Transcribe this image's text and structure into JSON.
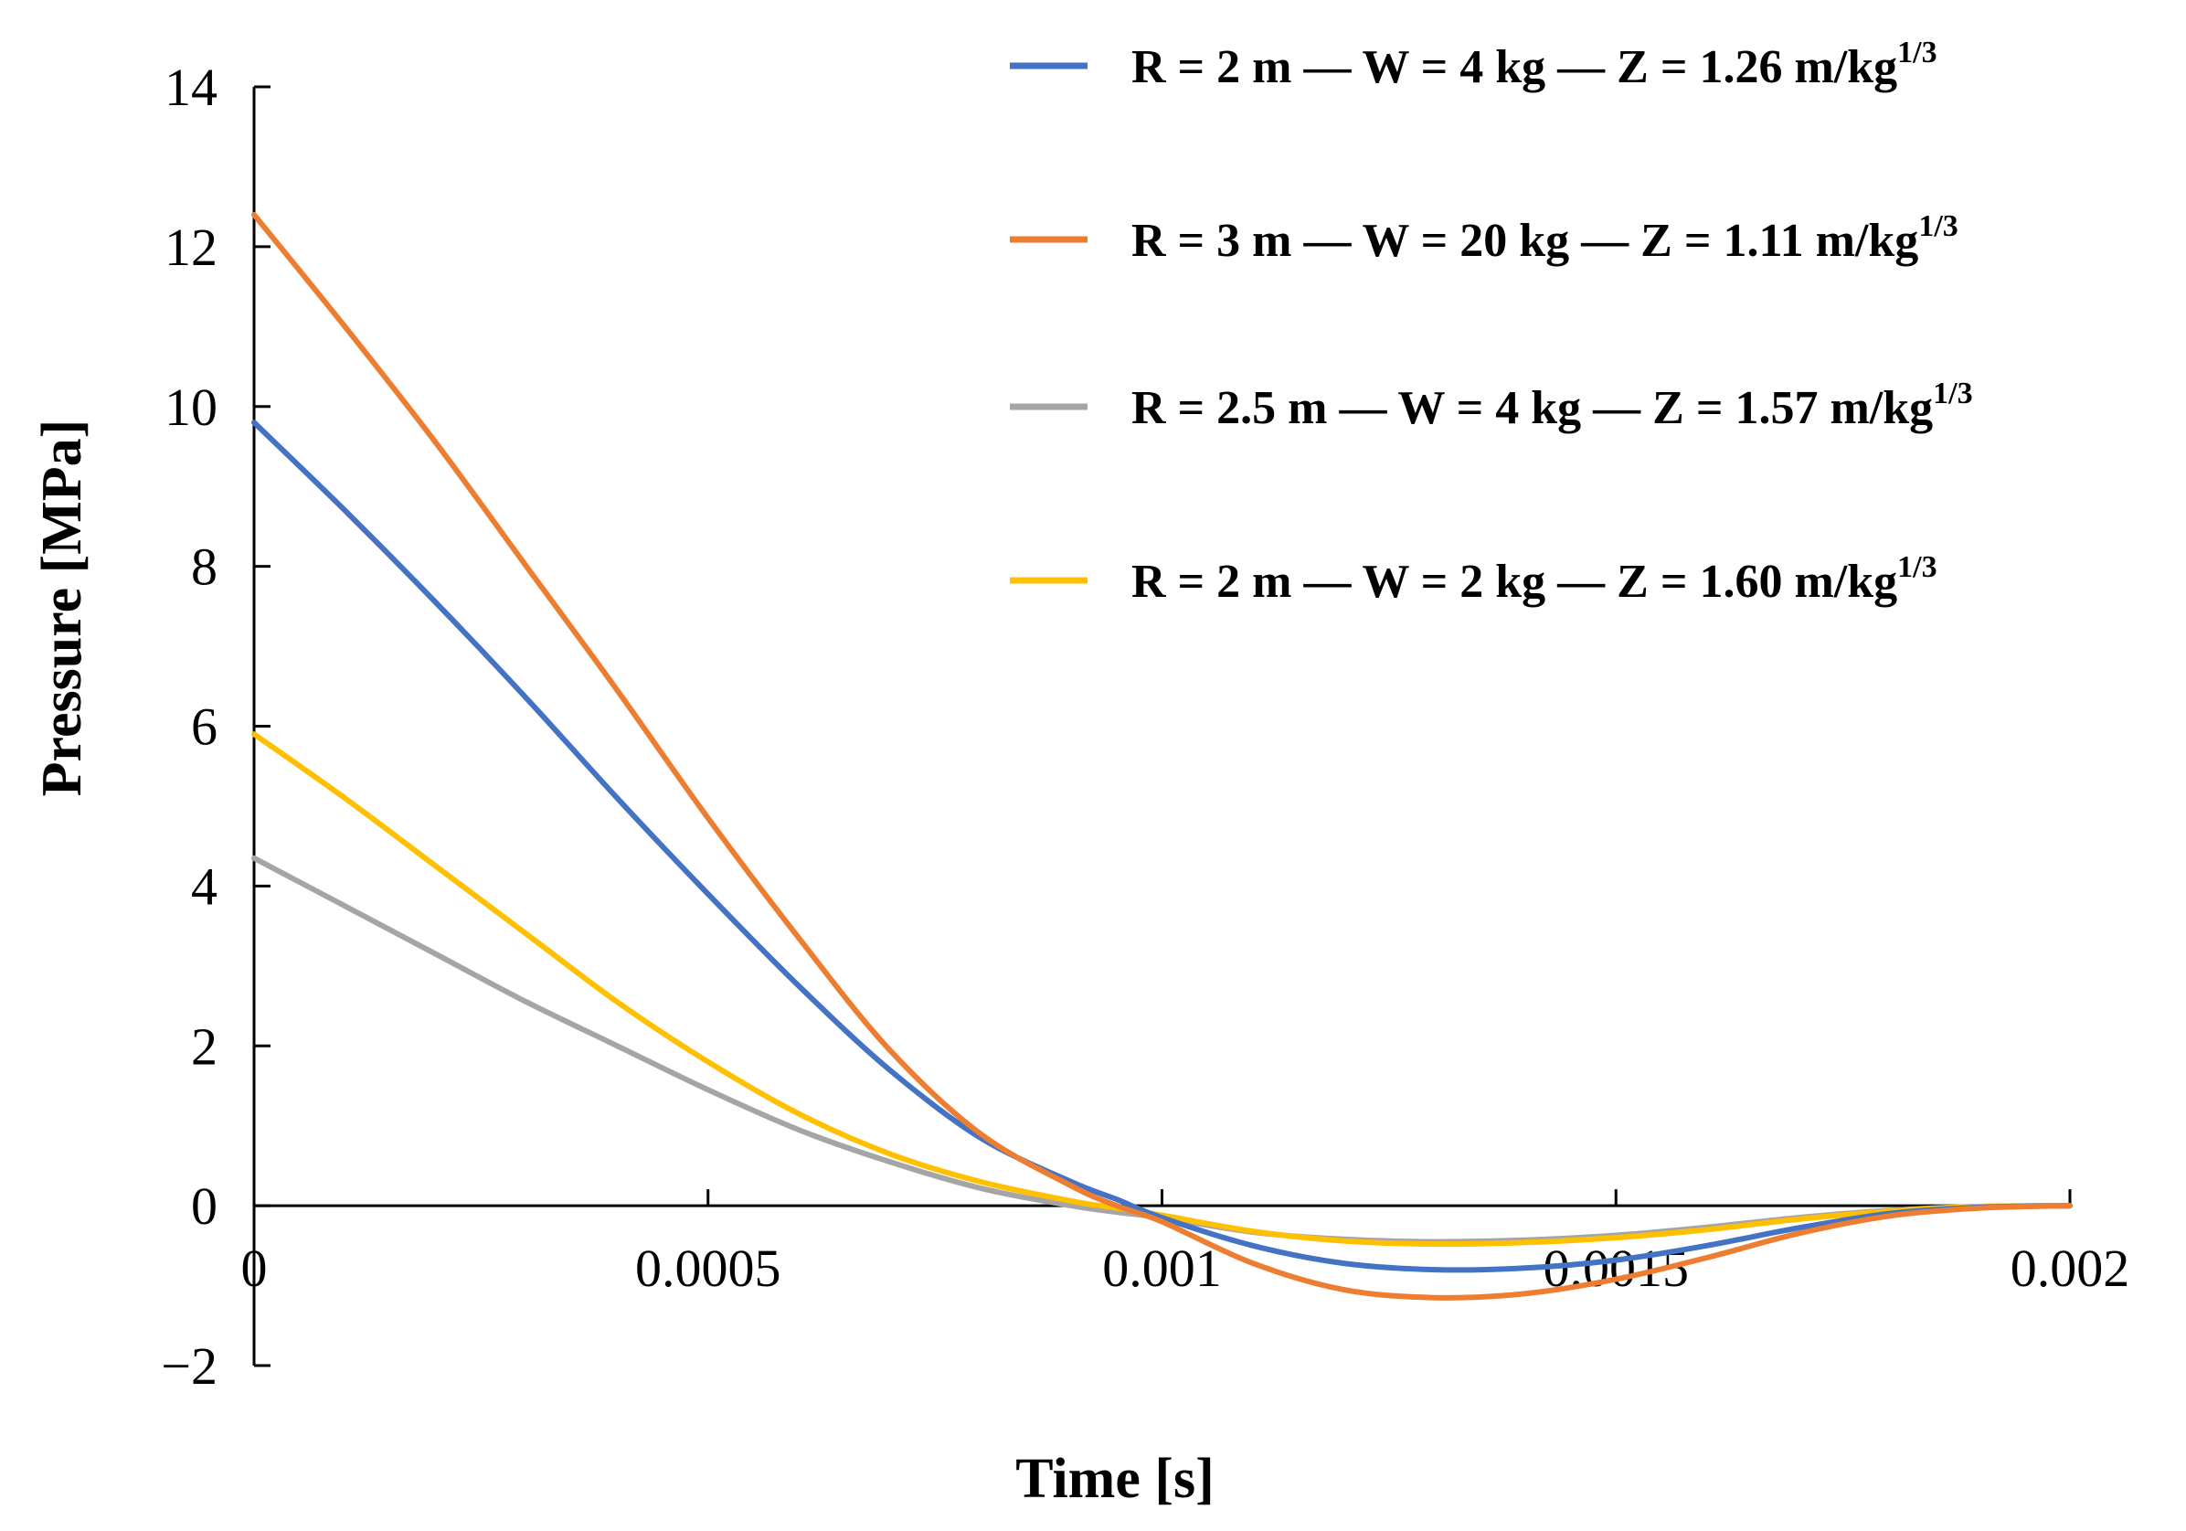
{
  "chart_data": {
    "type": "line",
    "title": "",
    "xlabel": "Time [s]",
    "ylabel": "Pressure  [MPa]",
    "xlim": [
      0,
      0.002
    ],
    "ylim": [
      -2,
      14
    ],
    "x_ticks": [
      0,
      0.0005,
      0.001,
      0.0015,
      0.002
    ],
    "x_tick_labels": [
      "0",
      "0.0005",
      "0.001",
      "0.0015",
      "0.002"
    ],
    "y_ticks": [
      -2,
      0,
      2,
      4,
      6,
      8,
      10,
      12,
      14
    ],
    "y_tick_labels": [
      "−2",
      "0",
      "2",
      "4",
      "6",
      "8",
      "10",
      "12",
      "14"
    ],
    "grid": false,
    "legend_position": "top-right",
    "x": [
      0,
      0.0001,
      0.0002,
      0.0003,
      0.0004,
      0.0005,
      0.0006,
      0.0007,
      0.0008,
      0.0009,
      0.00095,
      0.001,
      0.0011,
      0.0012,
      0.0013,
      0.0014,
      0.0015,
      0.0016,
      0.0017,
      0.0018,
      0.0019,
      0.002
    ],
    "series": [
      {
        "name": "R = 2 m — W = 4 kg — Z = 1.26 m/kg",
        "superscript": "1/3",
        "color": "#4472C4",
        "values": [
          9.8,
          8.7,
          7.55,
          6.35,
          5.1,
          3.9,
          2.75,
          1.7,
          0.85,
          0.3,
          0.08,
          -0.15,
          -0.5,
          -0.72,
          -0.8,
          -0.78,
          -0.68,
          -0.5,
          -0.28,
          -0.1,
          -0.02,
          0
        ]
      },
      {
        "name": "R = 3 m — W = 20 kg — Z = 1.11 m/kg",
        "superscript": "1/3",
        "color": "#ED7D31",
        "values": [
          12.4,
          11.0,
          9.55,
          8.0,
          6.45,
          4.85,
          3.35,
          1.95,
          0.9,
          0.25,
          0.0,
          -0.2,
          -0.72,
          -1.05,
          -1.15,
          -1.1,
          -0.92,
          -0.65,
          -0.35,
          -0.13,
          -0.03,
          0
        ]
      },
      {
        "name": "R = 2.5 m — W = 4 kg — Z = 1.57 m/kg",
        "superscript": "1/3",
        "color": "#A5A5A5",
        "values": [
          4.35,
          3.75,
          3.15,
          2.55,
          2.0,
          1.45,
          0.95,
          0.55,
          0.22,
          0.0,
          -0.08,
          -0.15,
          -0.33,
          -0.42,
          -0.45,
          -0.43,
          -0.37,
          -0.27,
          -0.15,
          -0.06,
          -0.01,
          0
        ]
      },
      {
        "name": "R = 2 m — W = 2 kg — Z = 1.60 m/kg",
        "superscript": "1/3",
        "color": "#FFC000",
        "values": [
          5.9,
          5.1,
          4.25,
          3.4,
          2.55,
          1.8,
          1.15,
          0.65,
          0.3,
          0.06,
          -0.03,
          -0.12,
          -0.32,
          -0.44,
          -0.48,
          -0.46,
          -0.4,
          -0.3,
          -0.17,
          -0.07,
          -0.01,
          0
        ]
      }
    ]
  }
}
